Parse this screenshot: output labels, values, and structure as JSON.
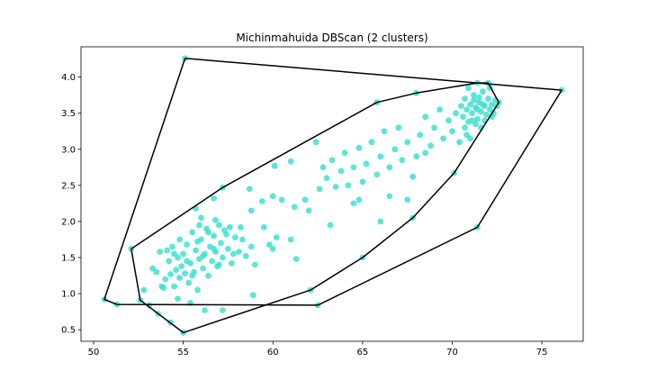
{
  "chart_data": {
    "type": "scatter",
    "title": "Michinmahuida DBScan (2 clusters)",
    "xlabel": "",
    "ylabel": "",
    "xlim": [
      49.3,
      77.3
    ],
    "ylim": [
      0.34,
      4.42
    ],
    "xticks": [
      50,
      55,
      60,
      65,
      70,
      75
    ],
    "yticks": [
      0.5,
      1.0,
      1.5,
      2.0,
      2.5,
      3.0,
      3.5,
      4.0
    ],
    "grid": false,
    "colors": {
      "point": "#40e0d0",
      "hull": "#000000"
    },
    "series": [
      {
        "points": [
          [
            55.1,
            4.26
          ],
          [
            76.1,
            3.82
          ],
          [
            50.6,
            0.92
          ],
          [
            51.3,
            0.85
          ],
          [
            52.6,
            0.91
          ],
          [
            55.0,
            0.46
          ],
          [
            62.5,
            0.84
          ],
          [
            71.4,
            1.92
          ],
          [
            72.6,
            3.65
          ],
          [
            72.0,
            3.92
          ],
          [
            71.4,
            3.92
          ],
          [
            68.0,
            3.78
          ],
          [
            65.8,
            3.65
          ],
          [
            52.1,
            1.62
          ],
          [
            57.2,
            2.47
          ],
          [
            53.1,
            0.84
          ],
          [
            53.6,
            0.72
          ],
          [
            54.3,
            0.6
          ],
          [
            54.7,
            0.93
          ],
          [
            55.4,
            0.87
          ],
          [
            56.2,
            0.77
          ],
          [
            57.2,
            0.77
          ],
          [
            58.9,
            0.98
          ],
          [
            62.1,
            1.05
          ],
          [
            65.0,
            1.5
          ],
          [
            67.8,
            2.05
          ],
          [
            70.1,
            2.67
          ],
          [
            62.4,
            3.1
          ],
          [
            61.0,
            2.83
          ],
          [
            60.1,
            2.77
          ],
          [
            60.0,
            2.35
          ],
          [
            59.4,
            2.28
          ],
          [
            58.7,
            2.45
          ],
          [
            55.7,
            2.18
          ],
          [
            56.7,
            2.32
          ],
          [
            53.3,
            1.35
          ],
          [
            53.5,
            1.3
          ],
          [
            53.7,
            1.58
          ],
          [
            53.9,
            1.08
          ],
          [
            54.0,
            1.2
          ],
          [
            54.1,
            1.6
          ],
          [
            54.2,
            1.45
          ],
          [
            54.3,
            1.27
          ],
          [
            54.4,
            1.65
          ],
          [
            54.5,
            1.1
          ],
          [
            54.6,
            1.33
          ],
          [
            54.7,
            1.5
          ],
          [
            54.8,
            1.22
          ],
          [
            54.9,
            1.38
          ],
          [
            55.0,
            1.55
          ],
          [
            55.1,
            1.28
          ],
          [
            55.2,
            1.68
          ],
          [
            55.3,
            1.15
          ],
          [
            55.4,
            1.42
          ],
          [
            55.5,
            1.85
          ],
          [
            55.6,
            1.3
          ],
          [
            55.7,
            1.6
          ],
          [
            55.8,
            1.05
          ],
          [
            55.9,
            1.48
          ],
          [
            56.0,
            1.75
          ],
          [
            56.1,
            1.35
          ],
          [
            56.2,
            1.55
          ],
          [
            56.3,
            1.9
          ],
          [
            56.4,
            1.25
          ],
          [
            56.5,
            1.65
          ],
          [
            56.6,
            1.45
          ],
          [
            56.7,
            1.8
          ],
          [
            56.8,
            1.58
          ],
          [
            56.9,
            1.38
          ],
          [
            57.0,
            1.95
          ],
          [
            57.1,
            1.7
          ],
          [
            57.2,
            1.5
          ],
          [
            57.3,
            1.88
          ],
          [
            57.5,
            1.62
          ],
          [
            57.7,
            1.42
          ],
          [
            57.9,
            1.78
          ],
          [
            58.1,
            1.58
          ],
          [
            58.3,
            1.75
          ],
          [
            58.5,
            1.52
          ],
          [
            58.8,
            1.65
          ],
          [
            54.5,
            1.55
          ],
          [
            54.8,
            1.75
          ],
          [
            55.2,
            1.45
          ],
          [
            55.5,
            1.25
          ],
          [
            55.8,
            1.72
          ],
          [
            56.1,
            1.52
          ],
          [
            56.4,
            1.85
          ],
          [
            56.7,
            1.62
          ],
          [
            57.0,
            1.4
          ],
          [
            57.4,
            1.82
          ],
          [
            55.9,
            1.95
          ],
          [
            56.8,
            2.02
          ],
          [
            57.6,
            1.92
          ],
          [
            58.2,
            1.92
          ],
          [
            58.8,
            2.15
          ],
          [
            59.5,
            1.92
          ],
          [
            59.8,
            1.68
          ],
          [
            60.2,
            1.78
          ],
          [
            61.0,
            1.75
          ],
          [
            60.0,
            1.62
          ],
          [
            59.0,
            1.4
          ],
          [
            61.3,
            1.48
          ],
          [
            56.0,
            2.05
          ],
          [
            57.8,
            1.55
          ],
          [
            53.8,
            1.1
          ],
          [
            52.8,
            1.05
          ],
          [
            60.5,
            2.3
          ],
          [
            61.2,
            2.2
          ],
          [
            61.8,
            2.3
          ],
          [
            62.0,
            2.15
          ],
          [
            62.6,
            2.45
          ],
          [
            63.0,
            2.6
          ],
          [
            63.3,
            2.85
          ],
          [
            63.5,
            2.48
          ],
          [
            63.8,
            2.7
          ],
          [
            64.0,
            2.95
          ],
          [
            64.2,
            2.5
          ],
          [
            64.5,
            2.75
          ],
          [
            64.8,
            3.02
          ],
          [
            65.0,
            2.55
          ],
          [
            65.2,
            2.8
          ],
          [
            65.5,
            3.1
          ],
          [
            65.8,
            2.65
          ],
          [
            66.0,
            2.9
          ],
          [
            66.2,
            3.25
          ],
          [
            66.5,
            2.75
          ],
          [
            66.8,
            3.0
          ],
          [
            67.0,
            3.3
          ],
          [
            67.2,
            2.85
          ],
          [
            67.5,
            3.1
          ],
          [
            67.8,
            2.62
          ],
          [
            68.0,
            2.9
          ],
          [
            68.2,
            3.2
          ],
          [
            68.5,
            3.45
          ],
          [
            68.8,
            3.05
          ],
          [
            69.0,
            3.3
          ],
          [
            69.3,
            3.55
          ],
          [
            69.5,
            3.15
          ],
          [
            69.8,
            3.4
          ],
          [
            70.0,
            3.25
          ],
          [
            70.2,
            3.5
          ],
          [
            70.4,
            3.1
          ],
          [
            63.2,
            1.95
          ],
          [
            64.5,
            2.25
          ],
          [
            66.0,
            2.0
          ],
          [
            66.5,
            2.35
          ],
          [
            67.5,
            2.3
          ],
          [
            62.8,
            2.75
          ],
          [
            64.8,
            2.3
          ],
          [
            68.5,
            2.95
          ],
          [
            70.5,
            3.6
          ],
          [
            70.6,
            3.45
          ],
          [
            70.7,
            3.7
          ],
          [
            70.8,
            3.55
          ],
          [
            70.9,
            3.38
          ],
          [
            71.0,
            3.62
          ],
          [
            71.1,
            3.5
          ],
          [
            71.2,
            3.75
          ],
          [
            71.3,
            3.58
          ],
          [
            71.4,
            3.42
          ],
          [
            71.5,
            3.65
          ],
          [
            71.6,
            3.52
          ],
          [
            71.7,
            3.8
          ],
          [
            71.8,
            3.6
          ],
          [
            71.9,
            3.48
          ],
          [
            72.0,
            3.7
          ],
          [
            72.1,
            3.55
          ],
          [
            72.2,
            3.62
          ],
          [
            72.3,
            3.5
          ],
          [
            72.4,
            3.68
          ],
          [
            70.9,
            3.85
          ],
          [
            71.3,
            3.35
          ],
          [
            71.6,
            3.3
          ],
          [
            72.1,
            3.85
          ],
          [
            70.8,
            3.2
          ],
          [
            71.0,
            3.15
          ],
          [
            70.7,
            3.3
          ],
          [
            71.2,
            3.68
          ],
          [
            71.5,
            3.72
          ],
          [
            71.8,
            3.4
          ],
          [
            72.2,
            3.45
          ],
          [
            71.1,
            3.4
          ],
          [
            71.4,
            3.55
          ],
          [
            71.7,
            3.62
          ],
          [
            72.5,
            3.6
          ]
        ]
      }
    ],
    "hulls": [
      {
        "points": [
          [
            55.1,
            4.26
          ],
          [
            76.1,
            3.82
          ],
          [
            71.4,
            1.92
          ],
          [
            62.5,
            0.84
          ],
          [
            51.3,
            0.85
          ],
          [
            50.6,
            0.92
          ],
          [
            55.1,
            4.26
          ]
        ]
      },
      {
        "points": [
          [
            52.1,
            1.62
          ],
          [
            57.2,
            2.47
          ],
          [
            65.8,
            3.65
          ],
          [
            68.0,
            3.78
          ],
          [
            71.4,
            3.92
          ],
          [
            72.0,
            3.92
          ],
          [
            72.6,
            3.65
          ],
          [
            70.1,
            2.67
          ],
          [
            67.8,
            2.05
          ],
          [
            65.0,
            1.5
          ],
          [
            62.1,
            1.05
          ],
          [
            55.0,
            0.46
          ],
          [
            52.6,
            0.91
          ],
          [
            52.1,
            1.62
          ]
        ]
      }
    ]
  }
}
